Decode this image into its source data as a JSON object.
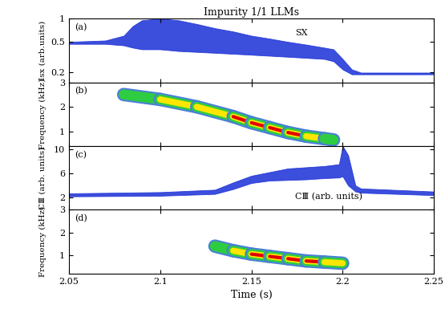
{
  "chart_data": [
    {
      "type": "band",
      "title": "Impurity 1/1 LLMs",
      "label": "(a)",
      "annotation": "SX",
      "y_label": "Isx (arb.units)",
      "log": "y",
      "color": "#1a2fd6",
      "x": [
        2.05,
        2.07,
        2.08,
        2.085,
        2.09,
        2.1,
        2.11,
        2.12,
        2.13,
        2.14,
        2.15,
        2.16,
        2.17,
        2.18,
        2.19,
        2.195,
        2.2,
        2.205,
        2.21,
        2.25
      ],
      "upper": [
        0.5,
        0.52,
        0.6,
        0.8,
        0.95,
        1.0,
        0.95,
        0.85,
        0.75,
        0.68,
        0.6,
        0.55,
        0.5,
        0.46,
        0.42,
        0.4,
        0.3,
        0.22,
        0.2,
        0.2
      ],
      "lower": [
        0.47,
        0.47,
        0.45,
        0.42,
        0.4,
        0.4,
        0.38,
        0.37,
        0.36,
        0.35,
        0.34,
        0.33,
        0.32,
        0.31,
        0.3,
        0.28,
        0.22,
        0.19,
        0.19,
        0.19
      ],
      "xlim": [
        2.05,
        2.25
      ],
      "xticks": [
        2.05,
        2.1,
        2.15,
        2.2,
        2.25
      ],
      "ylim": [
        0.15,
        1
      ],
      "yticks": [
        0.2,
        0.5,
        1
      ],
      "tick_labels": "y"
    },
    {
      "type": "ridge",
      "label": "(b)",
      "y_label": "Frequency (kHz)",
      "x": [
        2.08,
        2.1,
        2.12,
        2.14,
        2.15,
        2.16,
        2.17,
        2.18,
        2.19,
        2.195
      ],
      "frequency": [
        2.5,
        2.3,
        2.0,
        1.6,
        1.35,
        1.15,
        0.95,
        0.8,
        0.7,
        0.65
      ],
      "intensity": [
        1,
        2,
        2,
        3,
        3,
        3,
        3,
        3,
        2,
        1
      ],
      "xlim": [
        2.05,
        2.25
      ],
      "xticks": [
        2.05,
        2.1,
        2.15,
        2.2,
        2.25
      ],
      "ylim": [
        0.4,
        3
      ],
      "yticks": [
        1,
        2,
        3
      ],
      "tick_labels": "y"
    },
    {
      "type": "band",
      "label": "(c)",
      "annotation": "CⅢ (arb. units)",
      "y_label": "CⅢ (arb. units)",
      "color": "#1a2fd6",
      "x": [
        2.05,
        2.1,
        2.13,
        2.14,
        2.15,
        2.16,
        2.17,
        2.18,
        2.19,
        2.198,
        2.2,
        2.203,
        2.207,
        2.21,
        2.25
      ],
      "upper": [
        2.7,
        2.9,
        3.3,
        4.5,
        5.6,
        6.2,
        6.8,
        7.0,
        7.2,
        7.5,
        10.5,
        9.0,
        4.0,
        3.5,
        3.0
      ],
      "lower": [
        2.2,
        2.3,
        2.6,
        3.4,
        4.4,
        4.8,
        4.9,
        5.0,
        5.2,
        5.3,
        5.5,
        4.0,
        3.0,
        2.8,
        2.4
      ],
      "xlim": [
        2.05,
        2.25
      ],
      "xticks": [
        2.05,
        2.1,
        2.15,
        2.2,
        2.25
      ],
      "ylim": [
        0,
        10.5
      ],
      "yticks": [
        2,
        6,
        10
      ],
      "tick_labels": "y"
    },
    {
      "type": "ridge",
      "label": "(d)",
      "y_label": "Frequency (kHz)",
      "x_label": "Time (s)",
      "x": [
        2.13,
        2.14,
        2.15,
        2.16,
        2.17,
        2.18,
        2.19,
        2.2
      ],
      "frequency": [
        1.4,
        1.2,
        1.05,
        0.95,
        0.85,
        0.75,
        0.7,
        0.65
      ],
      "intensity": [
        1,
        2,
        3,
        3,
        3,
        3,
        3,
        2
      ],
      "xlim": [
        2.05,
        2.25
      ],
      "xticks": [
        2.05,
        2.1,
        2.15,
        2.2,
        2.25
      ],
      "ylim": [
        0.2,
        3
      ],
      "yticks": [
        1,
        2,
        3
      ]
    }
  ]
}
